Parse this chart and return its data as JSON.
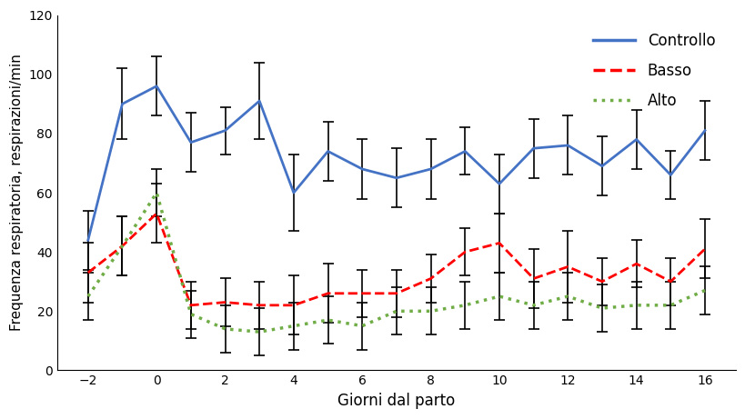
{
  "x": [
    -2,
    -1,
    0,
    1,
    2,
    3,
    4,
    5,
    6,
    7,
    8,
    9,
    10,
    11,
    12,
    13,
    14,
    15,
    16
  ],
  "controllo": [
    44,
    90,
    96,
    77,
    81,
    91,
    60,
    74,
    68,
    65,
    68,
    74,
    63,
    75,
    76,
    69,
    78,
    66,
    81
  ],
  "controllo_err": [
    10,
    12,
    10,
    10,
    8,
    13,
    13,
    10,
    10,
    10,
    10,
    8,
    10,
    10,
    10,
    10,
    10,
    8,
    10
  ],
  "basso": [
    33,
    42,
    53,
    22,
    23,
    22,
    22,
    26,
    26,
    26,
    31,
    40,
    43,
    31,
    35,
    30,
    36,
    30,
    41
  ],
  "basso_err": [
    10,
    10,
    10,
    8,
    8,
    8,
    10,
    10,
    8,
    8,
    8,
    8,
    10,
    10,
    12,
    8,
    8,
    8,
    10
  ],
  "alto": [
    25,
    42,
    60,
    19,
    14,
    13,
    15,
    17,
    15,
    20,
    20,
    22,
    25,
    22,
    25,
    21,
    22,
    22,
    27
  ],
  "alto_err": [
    8,
    10,
    8,
    8,
    8,
    8,
    8,
    8,
    8,
    8,
    8,
    8,
    8,
    8,
    8,
    8,
    8,
    8,
    8
  ],
  "ylabel": "Frequenza respiratoria, respirazioni/min",
  "xlabel": "Giorni dal parto",
  "ylim": [
    0,
    120
  ],
  "yticks": [
    0,
    20,
    40,
    60,
    80,
    100,
    120
  ],
  "xticks": [
    -2,
    0,
    2,
    4,
    6,
    8,
    10,
    12,
    14,
    16
  ],
  "controllo_color": "#4472C4",
  "basso_color": "#FF0000",
  "alto_color": "#70AD47",
  "legend_labels": [
    "Controllo",
    "Basso",
    "Alto"
  ],
  "background_color": "#FFFFFF"
}
